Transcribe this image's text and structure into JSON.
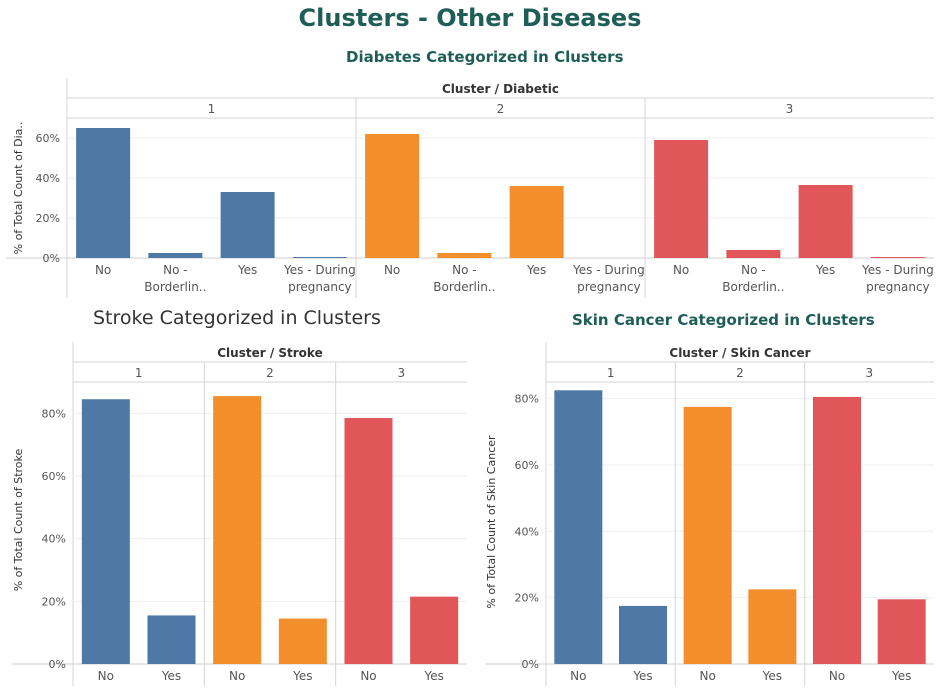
{
  "dashboard": {
    "title": "Clusters - Other Diseases"
  },
  "chart_data": [
    {
      "type": "bar",
      "title": "Diabetes Categorized in Clusters",
      "header": "Cluster / Diabetic",
      "ylabel": "% of Total Count of Dia..",
      "ylim": [
        0,
        70
      ],
      "yticks": [
        0,
        20,
        40,
        60
      ],
      "ytick_labels": [
        "0%",
        "20%",
        "40%",
        "60%"
      ],
      "categories": [
        [
          "No"
        ],
        [
          "No -",
          "Borderlin.."
        ],
        [
          "Yes"
        ],
        [
          "Yes - During",
          "pregnancy"
        ]
      ],
      "clusters": [
        {
          "name": "1",
          "values": [
            65,
            2.5,
            33,
            0.5
          ]
        },
        {
          "name": "2",
          "values": [
            62,
            2.5,
            36,
            0
          ]
        },
        {
          "name": "3",
          "values": [
            59,
            4,
            36.5,
            0.5
          ]
        }
      ],
      "colors": [
        "#4e79a7",
        "#f28e2b",
        "#e15759"
      ],
      "grid": true
    },
    {
      "type": "bar",
      "title": "Stroke Categorized in Clusters",
      "header": "Cluster / Stroke",
      "ylabel": "% of Total Count of Stroke",
      "ylim": [
        0,
        90
      ],
      "yticks": [
        0,
        20,
        40,
        60,
        80
      ],
      "ytick_labels": [
        "0%",
        "20%",
        "40%",
        "60%",
        "80%"
      ],
      "categories": [
        [
          "No"
        ],
        [
          "Yes"
        ]
      ],
      "clusters": [
        {
          "name": "1",
          "values": [
            84.5,
            15.5
          ]
        },
        {
          "name": "2",
          "values": [
            85.5,
            14.5
          ]
        },
        {
          "name": "3",
          "values": [
            78.5,
            21.5
          ]
        }
      ],
      "colors": [
        "#4e79a7",
        "#f28e2b",
        "#e15759"
      ],
      "grid": true
    },
    {
      "type": "bar",
      "title": "Skin Cancer Categorized in Clusters",
      "header": "Cluster / Skin Cancer",
      "ylabel": "% of Total Count of Skin Cancer",
      "ylim": [
        0,
        85
      ],
      "yticks": [
        0,
        20,
        40,
        60,
        80
      ],
      "ytick_labels": [
        "0%",
        "20%",
        "40%",
        "60%",
        "80%"
      ],
      "categories": [
        [
          "No"
        ],
        [
          "Yes"
        ]
      ],
      "clusters": [
        {
          "name": "1",
          "values": [
            82.5,
            17.5
          ]
        },
        {
          "name": "2",
          "values": [
            77.5,
            22.5
          ]
        },
        {
          "name": "3",
          "values": [
            80.5,
            19.5
          ]
        }
      ],
      "colors": [
        "#4e79a7",
        "#f28e2b",
        "#e15759"
      ],
      "grid": true
    }
  ]
}
